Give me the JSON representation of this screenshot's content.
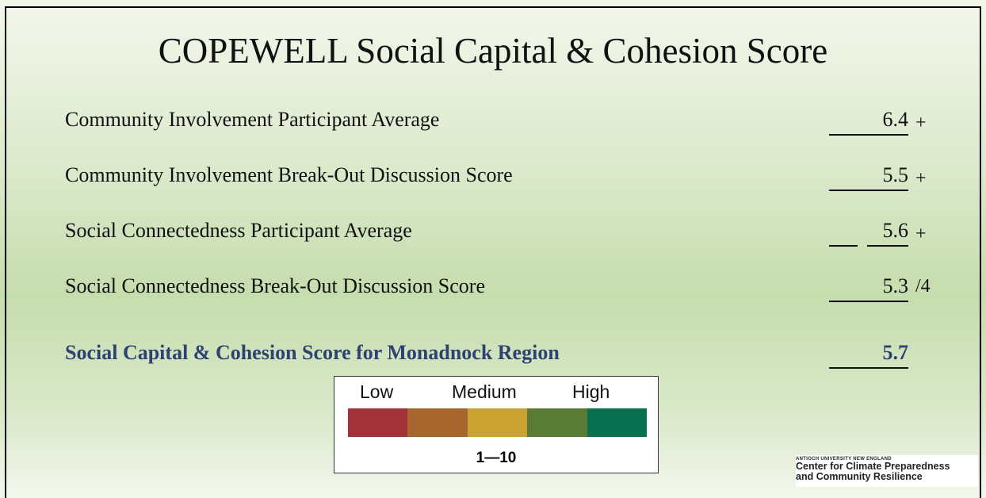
{
  "title": "COPEWELL Social Capital & Cohesion Score",
  "rows": [
    {
      "label": "Community Involvement Participant Average",
      "value": 6.4,
      "suffix": "+"
    },
    {
      "label": "Community Involvement Break-Out Discussion Score",
      "value": 5.5,
      "suffix": "+"
    },
    {
      "label": "Social Connectedness Participant Average",
      "value": 5.6,
      "suffix": "+"
    },
    {
      "label": "Social Connectedness Break-Out Discussion Score",
      "value": 5.3,
      "suffix": "/4"
    }
  ],
  "summary": {
    "label": "Social Capital & Cohesion Score for Monadnock Region",
    "value": 5.7
  },
  "legend": {
    "low": "Low",
    "medium": "Medium",
    "high": "High",
    "scale": "1—10",
    "colors": [
      "#a3313a",
      "#a7672c",
      "#c9a232",
      "#5a7b35",
      "#08704f"
    ]
  },
  "logo": {
    "line1": "ANTIOCH UNIVERSITY NEW ENGLAND",
    "line2": "Center for Climate Preparedness",
    "line3": "and Community Resilience"
  }
}
